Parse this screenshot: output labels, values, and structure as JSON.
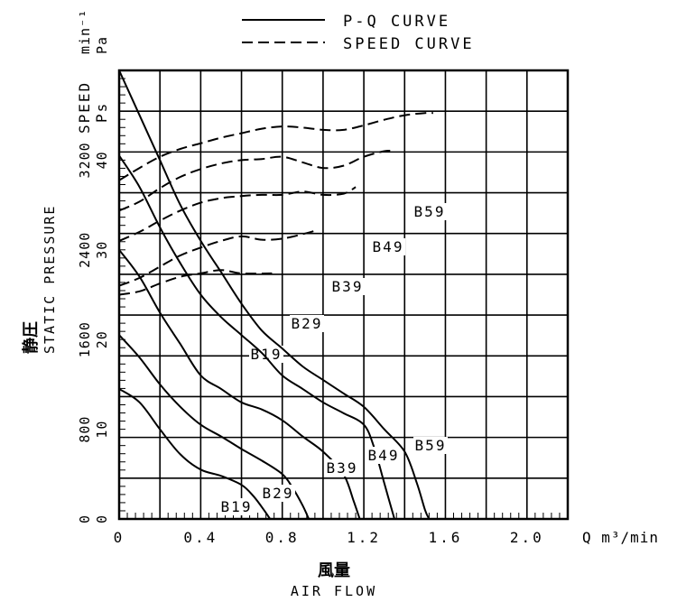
{
  "chart_data": {
    "type": "line",
    "legend": {
      "placement": "top-center",
      "entries": [
        {
          "label": "P-Q CURVE",
          "style": "solid"
        },
        {
          "label": "SPEED CURVE",
          "style": "dashed"
        }
      ]
    },
    "x_axis": {
      "label_jp": "風量",
      "label_en": "AIR FLOW",
      "unit": "Q m³/min",
      "range": [
        0,
        2.2
      ],
      "tick_labels": [
        "0",
        "0.4",
        "0.8",
        "1.2",
        "1.6",
        "2.0"
      ],
      "tick_values": [
        0,
        0.4,
        0.8,
        1.2,
        1.6,
        2.0
      ]
    },
    "y_axis_pressure": {
      "label_jp": "静圧",
      "label_en": "STATIC PRESSURE",
      "unit": "Pa",
      "symbol": "Ps",
      "range": [
        0,
        50
      ],
      "tick_labels": [
        "0",
        "10",
        "20",
        "30",
        "40"
      ],
      "tick_values": [
        0,
        10,
        20,
        30,
        40
      ]
    },
    "y_axis_speed": {
      "label": "SPEED",
      "unit": "min⁻¹",
      "range": [
        0,
        4000
      ],
      "tick_labels": [
        "0",
        "800",
        "1600",
        "2400",
        "3200"
      ],
      "tick_values": [
        0,
        800,
        1600,
        2400,
        3200
      ]
    },
    "grid": true,
    "series": [
      {
        "name": "B19",
        "pq": [
          [
            0,
            14.5
          ],
          [
            0.1,
            13
          ],
          [
            0.2,
            10
          ],
          [
            0.3,
            7.2
          ],
          [
            0.4,
            5.5
          ],
          [
            0.5,
            4.8
          ],
          [
            0.6,
            3.8
          ],
          [
            0.66,
            2.5
          ],
          [
            0.71,
            1
          ],
          [
            0.74,
            0
          ]
        ],
        "speed": [
          [
            0,
            2000
          ],
          [
            0.1,
            2030
          ],
          [
            0.2,
            2100
          ],
          [
            0.3,
            2160
          ],
          [
            0.4,
            2190
          ],
          [
            0.5,
            2220
          ],
          [
            0.6,
            2190
          ],
          [
            0.75,
            2190
          ]
        ]
      },
      {
        "name": "B29",
        "pq": [
          [
            0,
            20.5
          ],
          [
            0.1,
            18
          ],
          [
            0.2,
            15
          ],
          [
            0.3,
            12.5
          ],
          [
            0.4,
            10.5
          ],
          [
            0.5,
            9.2
          ],
          [
            0.6,
            7.8
          ],
          [
            0.7,
            6.5
          ],
          [
            0.8,
            5
          ],
          [
            0.85,
            3.5
          ],
          [
            0.9,
            1.5
          ],
          [
            0.93,
            0
          ]
        ],
        "speed": [
          [
            0,
            2080
          ],
          [
            0.1,
            2150
          ],
          [
            0.2,
            2250
          ],
          [
            0.3,
            2350
          ],
          [
            0.4,
            2420
          ],
          [
            0.5,
            2480
          ],
          [
            0.6,
            2520
          ],
          [
            0.7,
            2490
          ],
          [
            0.8,
            2500
          ],
          [
            0.9,
            2540
          ],
          [
            0.96,
            2570
          ]
        ]
      },
      {
        "name": "B39",
        "pq": [
          [
            0,
            30
          ],
          [
            0.1,
            27
          ],
          [
            0.2,
            23
          ],
          [
            0.3,
            19.5
          ],
          [
            0.4,
            16
          ],
          [
            0.5,
            14.5
          ],
          [
            0.6,
            13
          ],
          [
            0.7,
            12.2
          ],
          [
            0.8,
            11
          ],
          [
            0.9,
            9.2
          ],
          [
            1.0,
            7.5
          ],
          [
            1.1,
            5
          ],
          [
            1.15,
            2
          ],
          [
            1.18,
            0
          ]
        ],
        "speed": [
          [
            0,
            2480
          ],
          [
            0.1,
            2560
          ],
          [
            0.2,
            2660
          ],
          [
            0.3,
            2750
          ],
          [
            0.4,
            2820
          ],
          [
            0.5,
            2860
          ],
          [
            0.6,
            2880
          ],
          [
            0.7,
            2890
          ],
          [
            0.8,
            2890
          ],
          [
            0.9,
            2920
          ],
          [
            1.0,
            2890
          ],
          [
            1.1,
            2900
          ],
          [
            1.16,
            2960
          ]
        ]
      },
      {
        "name": "B49",
        "pq": [
          [
            0,
            40.5
          ],
          [
            0.1,
            37
          ],
          [
            0.2,
            32.5
          ],
          [
            0.3,
            28.5
          ],
          [
            0.4,
            25
          ],
          [
            0.5,
            22.5
          ],
          [
            0.6,
            20.5
          ],
          [
            0.7,
            18.5
          ],
          [
            0.8,
            16
          ],
          [
            0.9,
            14.5
          ],
          [
            1.0,
            13
          ],
          [
            1.1,
            11.8
          ],
          [
            1.2,
            10.5
          ],
          [
            1.25,
            8
          ],
          [
            1.3,
            4
          ],
          [
            1.35,
            0
          ]
        ],
        "speed": [
          [
            0,
            2750
          ],
          [
            0.1,
            2830
          ],
          [
            0.2,
            2950
          ],
          [
            0.3,
            3050
          ],
          [
            0.4,
            3120
          ],
          [
            0.5,
            3170
          ],
          [
            0.6,
            3200
          ],
          [
            0.7,
            3210
          ],
          [
            0.8,
            3230
          ],
          [
            0.9,
            3180
          ],
          [
            1.0,
            3130
          ],
          [
            1.1,
            3150
          ],
          [
            1.2,
            3230
          ],
          [
            1.3,
            3280
          ],
          [
            1.35,
            3280
          ]
        ]
      },
      {
        "name": "B59",
        "pq": [
          [
            0,
            50
          ],
          [
            0.1,
            45
          ],
          [
            0.2,
            40
          ],
          [
            0.3,
            35
          ],
          [
            0.4,
            31
          ],
          [
            0.5,
            27.5
          ],
          [
            0.6,
            24
          ],
          [
            0.7,
            21
          ],
          [
            0.8,
            19
          ],
          [
            0.9,
            17
          ],
          [
            1.0,
            15.5
          ],
          [
            1.1,
            14
          ],
          [
            1.2,
            12.5
          ],
          [
            1.3,
            10
          ],
          [
            1.4,
            7.5
          ],
          [
            1.46,
            4
          ],
          [
            1.5,
            1
          ],
          [
            1.52,
            0
          ]
        ],
        "speed": [
          [
            0,
            3020
          ],
          [
            0.1,
            3130
          ],
          [
            0.2,
            3230
          ],
          [
            0.3,
            3300
          ],
          [
            0.4,
            3350
          ],
          [
            0.5,
            3400
          ],
          [
            0.6,
            3440
          ],
          [
            0.7,
            3480
          ],
          [
            0.8,
            3500
          ],
          [
            0.9,
            3490
          ],
          [
            1.0,
            3470
          ],
          [
            1.1,
            3470
          ],
          [
            1.2,
            3510
          ],
          [
            1.3,
            3560
          ],
          [
            1.4,
            3600
          ],
          [
            1.5,
            3620
          ],
          [
            1.54,
            3620
          ]
        ]
      }
    ]
  }
}
